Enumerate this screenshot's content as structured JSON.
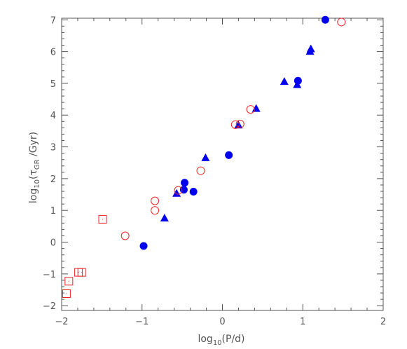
{
  "chart_data": {
    "type": "scatter",
    "title": "",
    "xlabel": {
      "prefix": "log",
      "sub": "10",
      "suffix": "(P/d)"
    },
    "ylabel": {
      "prefix": "log",
      "sub": "10",
      "mid": "(τ",
      "sub2": "GR",
      "suffix": " /Gyr)"
    },
    "xlim": [
      -2,
      2
    ],
    "ylim": [
      -2.15,
      7.05
    ],
    "xticks": [
      -2,
      -1,
      0,
      1,
      2
    ],
    "yticks": [
      -2,
      -1,
      0,
      1,
      2,
      3,
      4,
      5,
      6,
      7
    ],
    "grid": false,
    "colors": {
      "filled": "#0000ee",
      "open": "#ee2222",
      "axis": "#555555"
    },
    "series": [
      {
        "marker": "filled-circle",
        "points": [
          [
            -0.98,
            -0.12
          ],
          [
            -0.48,
            1.65
          ],
          [
            -0.47,
            1.87
          ],
          [
            -0.36,
            1.59
          ],
          [
            0.08,
            2.74
          ],
          [
            0.94,
            5.08
          ],
          [
            1.28,
            7.0
          ]
        ]
      },
      {
        "marker": "filled-triangle",
        "points": [
          [
            -0.72,
            0.75
          ],
          [
            -0.57,
            1.53
          ],
          [
            -0.21,
            2.65
          ],
          [
            0.2,
            3.68
          ],
          [
            0.42,
            4.2
          ],
          [
            0.77,
            5.05
          ],
          [
            0.93,
            4.95
          ],
          [
            1.09,
            6.0
          ],
          [
            1.1,
            6.08
          ]
        ]
      },
      {
        "marker": "open-circle",
        "points": [
          [
            -1.21,
            0.2
          ],
          [
            -0.84,
            1.0
          ],
          [
            -0.84,
            1.3
          ],
          [
            -0.55,
            1.63
          ],
          [
            -0.27,
            2.25
          ],
          [
            0.16,
            3.7
          ],
          [
            0.22,
            3.72
          ],
          [
            0.35,
            4.18
          ],
          [
            1.48,
            6.93
          ]
        ]
      },
      {
        "marker": "open-square",
        "points": [
          [
            -1.94,
            -1.62
          ],
          [
            -1.91,
            -1.23
          ],
          [
            -1.79,
            -0.95
          ],
          [
            -1.75,
            -0.95
          ],
          [
            -1.49,
            0.72
          ]
        ]
      }
    ]
  }
}
